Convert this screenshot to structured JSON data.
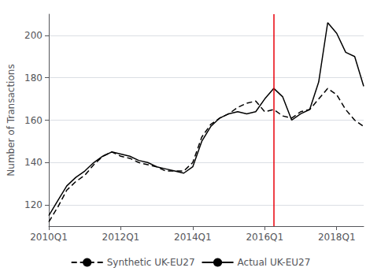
{
  "chart_data": {
    "type": "line",
    "ylabel": "Number of Transactions",
    "categories": [
      "2010Q1",
      null,
      null,
      null,
      null,
      null,
      null,
      null,
      "2012Q1",
      null,
      null,
      null,
      null,
      null,
      null,
      null,
      "2014Q1",
      null,
      null,
      null,
      null,
      null,
      null,
      null,
      "2016Q1",
      null,
      null,
      null,
      null,
      null,
      null,
      null,
      "2018Q1",
      null,
      null,
      null
    ],
    "series": [
      {
        "name": "Synthetic UK-EU27",
        "color": "#000000",
        "line_style": "dashed",
        "values": [
          112,
          119,
          127,
          131,
          134,
          139,
          143,
          145,
          143,
          142,
          140,
          139,
          138,
          136,
          136,
          136,
          140,
          152,
          158,
          161,
          163,
          166,
          168,
          169,
          164,
          165,
          162,
          161,
          164,
          165,
          170,
          175,
          172,
          165,
          160,
          157
        ]
      },
      {
        "name": "Actual UK-EU27",
        "color": "#000000",
        "line_style": "solid",
        "values": [
          115,
          122,
          129,
          133,
          136,
          140,
          143,
          145,
          144,
          143,
          141,
          140,
          138,
          137,
          136,
          135,
          138,
          150,
          157,
          161,
          163,
          164,
          163,
          164,
          170,
          175,
          171,
          160,
          163,
          165,
          178,
          206,
          201,
          192,
          190,
          176
        ]
      }
    ],
    "ylim": [
      110,
      210
    ],
    "yticks": [
      120,
      140,
      160,
      180,
      200
    ],
    "grid": true,
    "legend": "bottom",
    "vline": {
      "x": 25,
      "color": "#e8000b"
    }
  }
}
